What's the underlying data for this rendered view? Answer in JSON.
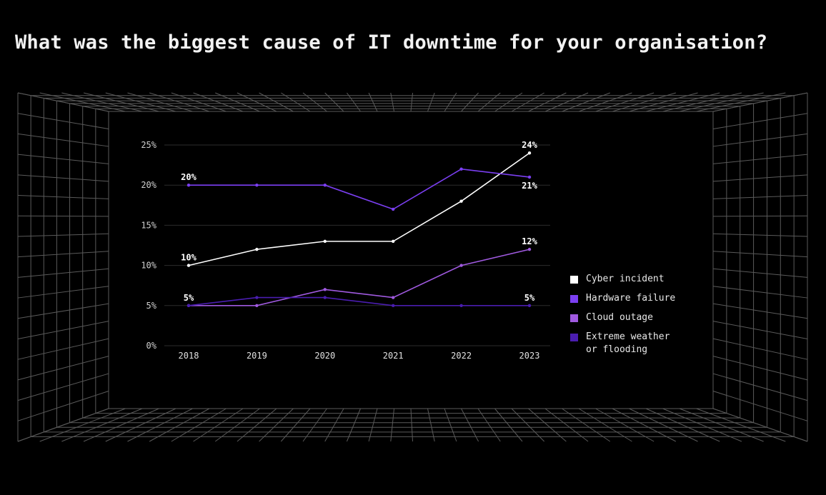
{
  "title": "What was the biggest cause of IT downtime for your organisation?",
  "colors": {
    "background": "#000000",
    "grid_room": "#5a5a5a",
    "inner_grid": "#2c2c2c"
  },
  "chart_data": {
    "type": "line",
    "title": "What was the biggest cause of IT downtime for your organisation?",
    "x": [
      "2018",
      "2019",
      "2020",
      "2021",
      "2022",
      "2023"
    ],
    "ylim": [
      0,
      25
    ],
    "yticks": [
      "0%",
      "5%",
      "10%",
      "15%",
      "20%",
      "25%"
    ],
    "ytick_values": [
      0,
      5,
      10,
      15,
      20,
      25
    ],
    "grid": true,
    "legend": "right",
    "series": [
      {
        "name": "Cyber incident",
        "color": "#ffffff",
        "values": [
          10,
          12,
          13,
          13,
          18,
          24
        ]
      },
      {
        "name": "Hardware failure",
        "color": "#7b3ff2",
        "values": [
          20,
          20,
          20,
          17,
          22,
          21
        ]
      },
      {
        "name": "Cloud outage",
        "color": "#a05ae0",
        "values": [
          5,
          5,
          7,
          6,
          10,
          12
        ]
      },
      {
        "name": "Extreme weather or flooding",
        "color": "#4a1db0",
        "values": [
          5,
          6,
          6,
          5,
          5,
          5
        ]
      }
    ],
    "data_labels": [
      {
        "series": 0,
        "index": 0,
        "text": "10%",
        "pos": "above"
      },
      {
        "series": 0,
        "index": 5,
        "text": "24%",
        "pos": "above"
      },
      {
        "series": 1,
        "index": 0,
        "text": "20%",
        "pos": "above"
      },
      {
        "series": 1,
        "index": 5,
        "text": "21%",
        "pos": "below"
      },
      {
        "series": 2,
        "index": 0,
        "text": "5%",
        "pos": "above"
      },
      {
        "series": 2,
        "index": 5,
        "text": "12%",
        "pos": "above"
      },
      {
        "series": 3,
        "index": 5,
        "text": "5%",
        "pos": "above"
      }
    ]
  },
  "legend": {
    "items": [
      {
        "label": "Cyber incident",
        "color": "#ffffff"
      },
      {
        "label": "Hardware failure",
        "color": "#7b3ff2"
      },
      {
        "label": "Cloud outage",
        "color": "#a05ae0"
      },
      {
        "label": "Extreme weather\nor flooding",
        "color": "#4a1db0"
      }
    ]
  }
}
